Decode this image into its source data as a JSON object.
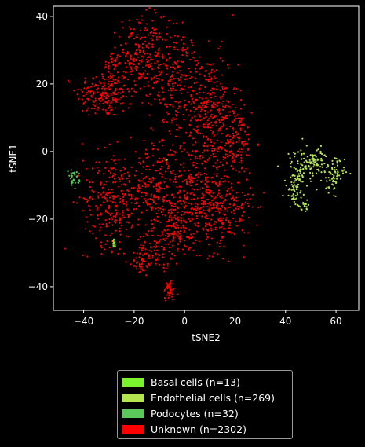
{
  "chart_data": {
    "type": "scatter",
    "title": "",
    "xlabel": "tSNE2",
    "ylabel": "tSNE1",
    "xlim": [
      -52,
      69
    ],
    "ylim": [
      -47,
      43
    ],
    "xticks": [
      -40,
      -20,
      0,
      20,
      40,
      60
    ],
    "yticks": [
      -40,
      -20,
      0,
      20,
      40
    ],
    "xtick_labels": [
      "−40",
      "−20",
      "0",
      "20",
      "40",
      "60"
    ],
    "ytick_labels": [
      "−40",
      "−20",
      "0",
      "20",
      "40"
    ],
    "background": "#000000",
    "grid": false,
    "legend_placement": "bottom-center",
    "series": [
      {
        "name": "Basal cells (n=13)",
        "color": "#7cf22e",
        "points": [
          [
            -28,
            -26
          ],
          [
            -28,
            -27
          ],
          [
            -28,
            -28
          ],
          [
            -27.6,
            -27.5
          ],
          [
            -28.3,
            -26.5
          ],
          [
            -27.8,
            -28.2
          ],
          [
            -28.1,
            -27
          ],
          [
            -27.9,
            -26.2
          ],
          [
            -28.2,
            -27.8
          ],
          [
            -7,
            -2.5
          ],
          [
            -27.7,
            -26.8
          ],
          [
            -28.4,
            -27.3
          ],
          [
            -27.5,
            -28
          ]
        ]
      },
      {
        "name": "Endothelial cells (n=269)",
        "color": "#b4e650",
        "clusters": [
          {
            "cx": 45,
            "cy": -6,
            "sx": 2.5,
            "sy": 3.5,
            "n": 70
          },
          {
            "cx": 52,
            "cy": -3,
            "sx": 3.2,
            "sy": 1.8,
            "n": 70
          },
          {
            "cx": 59,
            "cy": -7,
            "sx": 2.2,
            "sy": 2.5,
            "n": 70
          },
          {
            "cx": 44,
            "cy": -12,
            "sx": 2.0,
            "sy": 2.5,
            "n": 40
          },
          {
            "cx": 47,
            "cy": -16,
            "sx": 1.5,
            "sy": 0.8,
            "n": 19
          }
        ]
      },
      {
        "name": "Podocytes (n=32)",
        "color": "#5cc85a",
        "clusters": [
          {
            "cx": -44,
            "cy": -8,
            "sx": 1.1,
            "sy": 1.2,
            "n": 32
          }
        ]
      },
      {
        "name": "Unknown (n=2302)",
        "color": "#ff0000",
        "clusters": [
          {
            "cx": -32,
            "cy": 17,
            "sx": 5.5,
            "sy": 3.5,
            "n": 190
          },
          {
            "cx": -29,
            "cy": 26,
            "sx": 1.5,
            "sy": 2.0,
            "n": 25
          },
          {
            "cx": -18,
            "cy": 28,
            "sx": 4.5,
            "sy": 6.0,
            "n": 230
          },
          {
            "cx": -4,
            "cy": 22,
            "sx": 4.5,
            "sy": 8.0,
            "n": 180
          },
          {
            "cx": 9,
            "cy": 13,
            "sx": 6.0,
            "sy": 8.0,
            "n": 300
          },
          {
            "cx": 20,
            "cy": 3,
            "sx": 4.0,
            "sy": 5.0,
            "n": 140
          },
          {
            "cx": -28,
            "cy": -14,
            "sx": 6.0,
            "sy": 7.0,
            "n": 280
          },
          {
            "cx": -13,
            "cy": -12,
            "sx": 4.0,
            "sy": 5.5,
            "n": 140
          },
          {
            "cx": 5,
            "cy": -12,
            "sx": 7.0,
            "sy": 8.0,
            "n": 380
          },
          {
            "cx": 17,
            "cy": -18,
            "sx": 5.0,
            "sy": 5.0,
            "n": 150
          },
          {
            "cx": -4,
            "cy": -24,
            "sx": 5.0,
            "sy": 4.0,
            "n": 110
          },
          {
            "cx": -12,
            "cy": -29,
            "sx": 3.5,
            "sy": 2.5,
            "n": 65
          },
          {
            "cx": -17,
            "cy": -33,
            "sx": 1.8,
            "sy": 1.8,
            "n": 40
          },
          {
            "cx": -6,
            "cy": -41,
            "sx": 1.2,
            "sy": 1.5,
            "n": 42
          },
          {
            "cx": -11,
            "cy": 0,
            "sx": 3.0,
            "sy": 4.0,
            "n": 30
          }
        ]
      }
    ]
  }
}
